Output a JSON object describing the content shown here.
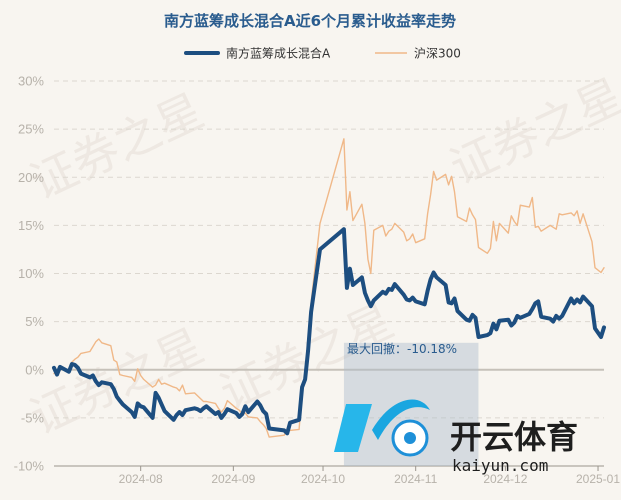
{
  "chart_data": {
    "type": "line",
    "title": "南方蓝筹成长混合A近6个月累计收益率走势",
    "y_unit": "%",
    "ylim": [
      -10,
      30
    ],
    "yticks": [
      -10,
      -5,
      0,
      5,
      10,
      15,
      20,
      25,
      30
    ],
    "x_range": [
      "2024-07-03",
      "2025-01-03"
    ],
    "xticks": [
      "2024-08",
      "2024-09",
      "2024-10",
      "2024-11",
      "2024-12",
      "2025-01"
    ],
    "grid": true,
    "legend_position": "top",
    "series": [
      {
        "name": "南方蓝筹成长混合A",
        "color": "#1d4e80",
        "points": [
          [
            "2024-07-03",
            0.2
          ],
          [
            "2024-07-04",
            -0.5
          ],
          [
            "2024-07-05",
            0.3
          ],
          [
            "2024-07-08",
            -0.2
          ],
          [
            "2024-07-09",
            0.6
          ],
          [
            "2024-07-10",
            0.5
          ],
          [
            "2024-07-11",
            0.2
          ],
          [
            "2024-07-12",
            -0.4
          ],
          [
            "2024-07-15",
            -0.8
          ],
          [
            "2024-07-16",
            -0.6
          ],
          [
            "2024-07-17",
            -1.2
          ],
          [
            "2024-07-18",
            -1.6
          ],
          [
            "2024-07-19",
            -1.3
          ],
          [
            "2024-07-22",
            -1.5
          ],
          [
            "2024-07-23",
            -2.0
          ],
          [
            "2024-07-24",
            -2.8
          ],
          [
            "2024-07-25",
            -3.2
          ],
          [
            "2024-07-26",
            -3.6
          ],
          [
            "2024-07-29",
            -4.4
          ],
          [
            "2024-07-30",
            -4.9
          ],
          [
            "2024-07-31",
            -3.5
          ],
          [
            "2024-08-01",
            -3.8
          ],
          [
            "2024-08-02",
            -3.9
          ],
          [
            "2024-08-05",
            -5.0
          ],
          [
            "2024-08-06",
            -2.4
          ],
          [
            "2024-08-07",
            -2.9
          ],
          [
            "2024-08-08",
            -3.6
          ],
          [
            "2024-08-09",
            -4.3
          ],
          [
            "2024-08-12",
            -5.2
          ],
          [
            "2024-08-13",
            -4.7
          ],
          [
            "2024-08-14",
            -4.4
          ],
          [
            "2024-08-15",
            -4.7
          ],
          [
            "2024-08-16",
            -4.2
          ],
          [
            "2024-08-19",
            -4.0
          ],
          [
            "2024-08-20",
            -4.1
          ],
          [
            "2024-08-21",
            -4.3
          ],
          [
            "2024-08-22",
            -4.0
          ],
          [
            "2024-08-23",
            -3.8
          ],
          [
            "2024-08-26",
            -4.6
          ],
          [
            "2024-08-27",
            -4.4
          ],
          [
            "2024-08-28",
            -5.0
          ],
          [
            "2024-08-29",
            -4.6
          ],
          [
            "2024-08-30",
            -4.1
          ],
          [
            "2024-09-02",
            -4.5
          ],
          [
            "2024-09-03",
            -4.9
          ],
          [
            "2024-09-04",
            -4.6
          ],
          [
            "2024-09-05",
            -3.8
          ],
          [
            "2024-09-06",
            -4.4
          ],
          [
            "2024-09-09",
            -3.3
          ],
          [
            "2024-09-10",
            -3.7
          ],
          [
            "2024-09-11",
            -4.3
          ],
          [
            "2024-09-12",
            -4.6
          ],
          [
            "2024-09-13",
            -6.1
          ],
          [
            "2024-09-18",
            -6.3
          ],
          [
            "2024-09-19",
            -6.6
          ],
          [
            "2024-09-20",
            -5.5
          ],
          [
            "2024-09-23",
            -5.2
          ],
          [
            "2024-09-24",
            -1.8
          ],
          [
            "2024-09-25",
            -1.0
          ],
          [
            "2024-09-26",
            2.0
          ],
          [
            "2024-09-27",
            6.0
          ],
          [
            "2024-09-30",
            12.5
          ],
          [
            "2024-10-08",
            14.6
          ],
          [
            "2024-10-09",
            8.5
          ],
          [
            "2024-10-10",
            10.5
          ],
          [
            "2024-10-11",
            8.8
          ],
          [
            "2024-10-14",
            9.6
          ],
          [
            "2024-10-15",
            8.0
          ],
          [
            "2024-10-16",
            7.2
          ],
          [
            "2024-10-17",
            6.6
          ],
          [
            "2024-10-18",
            7.2
          ],
          [
            "2024-10-21",
            8.1
          ],
          [
            "2024-10-22",
            7.9
          ],
          [
            "2024-10-23",
            8.4
          ],
          [
            "2024-10-24",
            8.3
          ],
          [
            "2024-10-25",
            8.9
          ],
          [
            "2024-10-28",
            7.8
          ],
          [
            "2024-10-29",
            7.3
          ],
          [
            "2024-10-30",
            7.2
          ],
          [
            "2024-10-31",
            7.5
          ],
          [
            "2024-11-01",
            7.1
          ],
          [
            "2024-11-04",
            6.8
          ],
          [
            "2024-11-05",
            8.2
          ],
          [
            "2024-11-06",
            9.4
          ],
          [
            "2024-11-07",
            10.1
          ],
          [
            "2024-11-08",
            9.6
          ],
          [
            "2024-11-11",
            8.8
          ],
          [
            "2024-11-12",
            7.0
          ],
          [
            "2024-11-13",
            6.9
          ],
          [
            "2024-11-14",
            7.4
          ],
          [
            "2024-11-15",
            6.1
          ],
          [
            "2024-11-18",
            5.2
          ],
          [
            "2024-11-19",
            5.1
          ],
          [
            "2024-11-20",
            5.7
          ],
          [
            "2024-11-21",
            5.4
          ],
          [
            "2024-11-22",
            3.4
          ],
          [
            "2024-11-25",
            3.6
          ],
          [
            "2024-11-26",
            3.8
          ],
          [
            "2024-11-27",
            4.8
          ],
          [
            "2024-11-28",
            4.2
          ],
          [
            "2024-11-29",
            5.1
          ],
          [
            "2024-12-02",
            5.2
          ],
          [
            "2024-12-03",
            4.6
          ],
          [
            "2024-12-04",
            4.9
          ],
          [
            "2024-12-05",
            5.6
          ],
          [
            "2024-12-06",
            5.4
          ],
          [
            "2024-12-09",
            5.8
          ],
          [
            "2024-12-10",
            6.3
          ],
          [
            "2024-12-11",
            6.9
          ],
          [
            "2024-12-12",
            7.1
          ],
          [
            "2024-12-13",
            5.5
          ],
          [
            "2024-12-16",
            5.3
          ],
          [
            "2024-12-17",
            5.0
          ],
          [
            "2024-12-18",
            5.6
          ],
          [
            "2024-12-19",
            5.3
          ],
          [
            "2024-12-20",
            5.6
          ],
          [
            "2024-12-23",
            7.4
          ],
          [
            "2024-12-24",
            6.9
          ],
          [
            "2024-12-25",
            7.3
          ],
          [
            "2024-12-26",
            7.0
          ],
          [
            "2024-12-27",
            7.6
          ],
          [
            "2024-12-30",
            6.6
          ],
          [
            "2024-12-31",
            4.3
          ],
          [
            "2025-01-02",
            3.4
          ],
          [
            "2025-01-03",
            4.4
          ]
        ]
      },
      {
        "name": "沪深300",
        "color": "#f0b888",
        "points": [
          [
            "2024-07-03",
            -0.4
          ],
          [
            "2024-07-04",
            -0.3
          ],
          [
            "2024-07-05",
            0.3
          ],
          [
            "2024-07-08",
            -0.2
          ],
          [
            "2024-07-09",
            0.8
          ],
          [
            "2024-07-10",
            1.1
          ],
          [
            "2024-07-11",
            1.3
          ],
          [
            "2024-07-12",
            1.7
          ],
          [
            "2024-07-15",
            1.9
          ],
          [
            "2024-07-16",
            2.4
          ],
          [
            "2024-07-17",
            2.9
          ],
          [
            "2024-07-18",
            3.2
          ],
          [
            "2024-07-19",
            2.8
          ],
          [
            "2024-07-22",
            2.5
          ],
          [
            "2024-07-23",
            1.0
          ],
          [
            "2024-07-24",
            0.8
          ],
          [
            "2024-07-25",
            -0.5
          ],
          [
            "2024-07-26",
            -0.6
          ],
          [
            "2024-07-29",
            -0.8
          ],
          [
            "2024-07-30",
            -1.2
          ],
          [
            "2024-07-31",
            0.1
          ],
          [
            "2024-08-01",
            -0.6
          ],
          [
            "2024-08-02",
            -1.0
          ],
          [
            "2024-08-05",
            -1.8
          ],
          [
            "2024-08-06",
            -1.6
          ],
          [
            "2024-08-07",
            -1.0
          ],
          [
            "2024-08-08",
            -1.5
          ],
          [
            "2024-08-09",
            -1.4
          ],
          [
            "2024-08-12",
            -1.8
          ],
          [
            "2024-08-13",
            -1.9
          ],
          [
            "2024-08-14",
            -2.2
          ],
          [
            "2024-08-15",
            -1.6
          ],
          [
            "2024-08-16",
            -2.5
          ],
          [
            "2024-08-19",
            -2.4
          ],
          [
            "2024-08-20",
            -2.7
          ],
          [
            "2024-08-21",
            -3.0
          ],
          [
            "2024-08-22",
            -3.3
          ],
          [
            "2024-08-23",
            -3.3
          ],
          [
            "2024-08-26",
            -3.5
          ],
          [
            "2024-08-27",
            -4.0
          ],
          [
            "2024-08-28",
            -4.4
          ],
          [
            "2024-08-29",
            -4.0
          ],
          [
            "2024-08-30",
            -3.2
          ],
          [
            "2024-09-02",
            -4.0
          ],
          [
            "2024-09-03",
            -4.2
          ],
          [
            "2024-09-04",
            -4.6
          ],
          [
            "2024-09-05",
            -4.5
          ],
          [
            "2024-09-06",
            -4.9
          ],
          [
            "2024-09-09",
            -5.0
          ],
          [
            "2024-09-10",
            -5.4
          ],
          [
            "2024-09-11",
            -5.7
          ],
          [
            "2024-09-12",
            -6.1
          ],
          [
            "2024-09-13",
            -7.0
          ],
          [
            "2024-09-18",
            -6.8
          ],
          [
            "2024-09-19",
            -6.2
          ],
          [
            "2024-09-20",
            -6.3
          ],
          [
            "2024-09-23",
            -6.2
          ],
          [
            "2024-09-24",
            -2.1
          ],
          [
            "2024-09-25",
            -1.0
          ],
          [
            "2024-09-26",
            2.4
          ],
          [
            "2024-09-27",
            7.0
          ],
          [
            "2024-09-30",
            15.2
          ],
          [
            "2024-10-08",
            24.0
          ],
          [
            "2024-10-09",
            16.6
          ],
          [
            "2024-10-10",
            18.5
          ],
          [
            "2024-10-11",
            15.5
          ],
          [
            "2024-10-14",
            17.2
          ],
          [
            "2024-10-15",
            15.2
          ],
          [
            "2024-10-16",
            11.5
          ],
          [
            "2024-10-17",
            10.0
          ],
          [
            "2024-10-18",
            14.5
          ],
          [
            "2024-10-21",
            15.0
          ],
          [
            "2024-10-22",
            13.9
          ],
          [
            "2024-10-23",
            14.4
          ],
          [
            "2024-10-24",
            14.6
          ],
          [
            "2024-10-25",
            15.2
          ],
          [
            "2024-10-28",
            14.3
          ],
          [
            "2024-10-29",
            13.4
          ],
          [
            "2024-10-30",
            13.6
          ],
          [
            "2024-10-31",
            14.1
          ],
          [
            "2024-11-01",
            13.2
          ],
          [
            "2024-11-04",
            13.6
          ],
          [
            "2024-11-05",
            16.2
          ],
          [
            "2024-11-06",
            18.2
          ],
          [
            "2024-11-07",
            20.6
          ],
          [
            "2024-11-08",
            19.7
          ],
          [
            "2024-11-11",
            20.3
          ],
          [
            "2024-11-12",
            19.2
          ],
          [
            "2024-11-13",
            20.1
          ],
          [
            "2024-11-14",
            18.5
          ],
          [
            "2024-11-15",
            15.9
          ],
          [
            "2024-11-18",
            15.4
          ],
          [
            "2024-11-19",
            16.8
          ],
          [
            "2024-11-20",
            16.1
          ],
          [
            "2024-11-21",
            15.6
          ],
          [
            "2024-11-22",
            12.7
          ],
          [
            "2024-11-25",
            12.1
          ],
          [
            "2024-11-26",
            12.6
          ],
          [
            "2024-11-27",
            15.4
          ],
          [
            "2024-11-28",
            13.4
          ],
          [
            "2024-11-29",
            15.2
          ],
          [
            "2024-12-02",
            14.2
          ],
          [
            "2024-12-03",
            16.0
          ],
          [
            "2024-12-04",
            15.4
          ],
          [
            "2024-12-05",
            15.0
          ],
          [
            "2024-12-06",
            17.1
          ],
          [
            "2024-12-09",
            16.9
          ],
          [
            "2024-12-10",
            17.9
          ],
          [
            "2024-12-11",
            14.8
          ],
          [
            "2024-12-12",
            14.9
          ],
          [
            "2024-12-13",
            14.4
          ],
          [
            "2024-12-16",
            15.0
          ],
          [
            "2024-12-17",
            14.8
          ],
          [
            "2024-12-18",
            14.6
          ],
          [
            "2024-12-19",
            16.2
          ],
          [
            "2024-12-20",
            16.1
          ],
          [
            "2024-12-23",
            16.3
          ],
          [
            "2024-12-24",
            16.0
          ],
          [
            "2024-12-25",
            16.5
          ],
          [
            "2024-12-26",
            15.2
          ],
          [
            "2024-12-27",
            16.2
          ],
          [
            "2024-12-30",
            13.3
          ],
          [
            "2024-12-31",
            10.6
          ],
          [
            "2025-01-02",
            10.1
          ],
          [
            "2025-01-03",
            10.6
          ]
        ]
      }
    ],
    "annotations": [
      {
        "text": "最大回撤：-10.18%"
      }
    ],
    "drawdown_region": {
      "x_start": "2024-10-08",
      "x_end": "2024-11-22",
      "y_low": -10,
      "y_high": 2.8
    }
  },
  "watermark": {
    "text": "证券之星"
  },
  "logo": {
    "brand": "开云体育",
    "domain": "kaiyun.com"
  }
}
